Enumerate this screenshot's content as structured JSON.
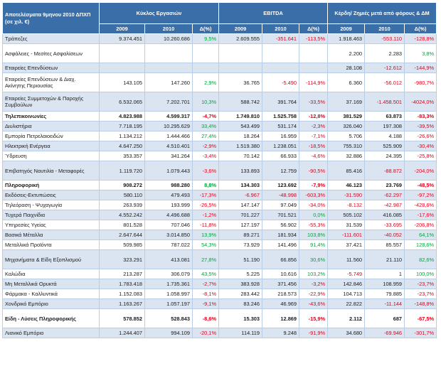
{
  "header": {
    "corner": "Αποτελέσματα 9μηνου 2010 ΔΠΧΠ (σε χιλ. €)",
    "groups": [
      "Κύκλος Εργασιών",
      "EBITDA",
      "Κέρδη/ Ζημιές μετά από φόρους & ΔΜ"
    ],
    "subheads": [
      "2009",
      "2010",
      "Δ(%)"
    ]
  },
  "rows": [
    {
      "name": "Τράπεζες",
      "h": 14,
      "band": true,
      "bold": false,
      "v": [
        "9.374.451",
        "10.260.686",
        "9,5%",
        "2.609.555",
        "-351.641",
        "-113,5%",
        "1.918.463",
        "-553.110",
        "-128,8%"
      ]
    },
    {
      "name": "Ασφάλειες - Μεσίτες Ασφαλίσεων",
      "h": 27,
      "band": false,
      "bold": false,
      "v": [
        "",
        "",
        "",
        "",
        "",
        "",
        "2.200",
        "2.283",
        "3,8%"
      ]
    },
    {
      "name": "Εταιρείες Επενδύσεων",
      "h": 14,
      "band": true,
      "bold": false,
      "v": [
        "",
        "",
        "",
        "",
        "",
        "",
        "28.108",
        "-12.612",
        "-144,9%"
      ]
    },
    {
      "name": "Εταιρείες Επενδύσεων & Διαχ. Ακίνητης Περιουσίας",
      "h": 27,
      "band": false,
      "bold": false,
      "v": [
        "143.105",
        "147.260",
        "2,9%",
        "36.765",
        "-5.490",
        "-114,9%",
        "6.360",
        "-56.012",
        "-980,7%"
      ]
    },
    {
      "name": "Εταιρείες Συμμετοχών & Παροχής Συμβούλων",
      "h": 27,
      "band": true,
      "bold": false,
      "v": [
        "6.532.065",
        "7.202.701",
        "10,3%",
        "588.742",
        "391.764",
        "-33,5%",
        "37.169",
        "-1.458.501",
        "-4024,0%"
      ]
    },
    {
      "name": "Τηλεπικοινωνίες",
      "h": 14,
      "band": false,
      "bold": true,
      "v": [
        "4.823.988",
        "4.599.317",
        "-4,7%",
        "1.749.810",
        "1.525.758",
        "-12,8%",
        "381.529",
        "63.873",
        "-83,3%"
      ]
    },
    {
      "name": "Διυλιστήρια",
      "h": 14,
      "band": true,
      "bold": false,
      "v": [
        "7.718.195",
        "10.295.629",
        "33,4%",
        "543.499",
        "531.174",
        "-2,3%",
        "326.040",
        "197.308",
        "-39,5%"
      ]
    },
    {
      "name": "Εμπορία Πετρελαιοειδών",
      "h": 14,
      "band": false,
      "bold": false,
      "v": [
        "1.134.212",
        "1.444.466",
        "27,4%",
        "18.264",
        "16.959",
        "-7,1%",
        "5.706",
        "4.188",
        "-26,6%"
      ]
    },
    {
      "name": "Ηλεκτρική Ενέργεια",
      "h": 14,
      "band": true,
      "bold": false,
      "v": [
        "4.647.250",
        "4.510.401",
        "-2,9%",
        "1.519.380",
        "1.238.051",
        "-18,5%",
        "755.310",
        "525.909",
        "-30,4%"
      ]
    },
    {
      "name": "Ύδρευση",
      "h": 14,
      "band": false,
      "bold": false,
      "v": [
        "353.357",
        "341.264",
        "-3,4%",
        "70.142",
        "66.933",
        "-4,6%",
        "32.886",
        "24.395",
        "-25,8%"
      ]
    },
    {
      "name": "Επιβατηγός Ναυτιλία - Μεταφορές",
      "h": 27,
      "band": true,
      "bold": false,
      "v": [
        "1.119.720",
        "1.079.443",
        "-3,6%",
        "133.893",
        "12.759",
        "-90,5%",
        "85.416",
        "-88.872",
        "-204,0%"
      ]
    },
    {
      "name": "Πληροφορική",
      "h": 14,
      "band": false,
      "bold": true,
      "v": [
        "908.272",
        "988.280",
        "8,8%",
        "134.303",
        "123.692",
        "-7,9%",
        "46.123",
        "23.769",
        "-48,5%"
      ]
    },
    {
      "name": "Εκδόσεις-Εκτυπώσεις",
      "h": 14,
      "band": true,
      "bold": false,
      "v": [
        "580.110",
        "479.493",
        "-17,3%",
        "-6.967",
        "-48.998",
        "-603,3%",
        "-31.590",
        "-62.297",
        "-97,2%"
      ]
    },
    {
      "name": "Τηλεόραση - Ψυχαγωγία",
      "h": 14,
      "band": false,
      "bold": false,
      "v": [
        "263.939",
        "193.999",
        "-26,5%",
        "147.147",
        "97.049",
        "-34,0%",
        "-8.132",
        "-42.987",
        "-428,6%"
      ]
    },
    {
      "name": "Τυχερά Παιχνίδια",
      "h": 14,
      "band": true,
      "bold": false,
      "v": [
        "4.552.242",
        "4.496.688",
        "-1,2%",
        "701.227",
        "701.521",
        "0,0%",
        "505.102",
        "416.085",
        "-17,6%"
      ]
    },
    {
      "name": "Υπηρεσίες Υγείας",
      "h": 14,
      "band": false,
      "bold": false,
      "v": [
        "801.528",
        "707.046",
        "-11,8%",
        "127.197",
        "56.902",
        "-55,3%",
        "31.539",
        "-33.695",
        "-206,8%"
      ]
    },
    {
      "name": "Βασικά Μέταλλα",
      "h": 14,
      "band": true,
      "bold": false,
      "v": [
        "2.647.644",
        "3.014.850",
        "13,9%",
        "89.271",
        "181.934",
        "103,8%",
        "-111.601",
        "-40.052",
        "64,1%"
      ]
    },
    {
      "name": "Μεταλλικά Προϊόντα",
      "h": 14,
      "band": false,
      "bold": false,
      "v": [
        "509.985",
        "787.022",
        "54,3%",
        "73.929",
        "141.496",
        "91,4%",
        "37.421",
        "85.557",
        "128,6%"
      ]
    },
    {
      "name": "Μηχανήματα & Είδη Εξοπλισμού",
      "h": 27,
      "band": true,
      "bold": false,
      "v": [
        "323.291",
        "413.081",
        "27,8%",
        "51.190",
        "66.856",
        "30,6%",
        "11.560",
        "21.110",
        "82,6%"
      ]
    },
    {
      "name": "Καλώδια",
      "h": 14,
      "band": false,
      "bold": false,
      "v": [
        "213.287",
        "306.079",
        "43,5%",
        "5.225",
        "10.616",
        "103,2%",
        "-5.749",
        "1",
        "100,0%"
      ]
    },
    {
      "name": "Μη Μεταλλικά Ορυκτά",
      "h": 14,
      "band": true,
      "bold": false,
      "v": [
        "1.783.418",
        "1.735.361",
        "-2,7%",
        "383.928",
        "371.456",
        "-3,2%",
        "142.846",
        "108.959",
        "-23,7%"
      ]
    },
    {
      "name": "Φάρμακα - Καλλυντικά",
      "h": 14,
      "band": false,
      "bold": false,
      "v": [
        "1.152.083",
        "1.058.997",
        "-8,1%",
        "283.442",
        "218.573",
        "-22,9%",
        "104.713",
        "79.885",
        "-23,7%"
      ]
    },
    {
      "name": "Χονδρικό Εμπόριο",
      "h": 14,
      "band": true,
      "bold": false,
      "v": [
        "1.163.267",
        "1.057.197",
        "-9,1%",
        "83.246",
        "46.969",
        "-43,6%",
        "22.822",
        "-11.144",
        "-148,8%"
      ]
    },
    {
      "name": "Είδη - Λύσεις Πληροφορικής",
      "h": 27,
      "band": false,
      "bold": true,
      "v": [
        "578.852",
        "528.843",
        "-8,6%",
        "15.303",
        "12.869",
        "-15,9%",
        "2.112",
        "687",
        "-67,5%"
      ]
    },
    {
      "name": "Λιανικό Εμπόριο",
      "h": 14,
      "band": true,
      "bold": false,
      "v": [
        "1.244.407",
        "994.109",
        "-20,1%",
        "114.119",
        "9.248",
        "-91,9%",
        "34.680",
        "-69.946",
        "-301,7%"
      ]
    }
  ],
  "colors": {
    "header": "#3a6ea8",
    "band": "#dbe5f1",
    "negative": "#e0001b",
    "positive": "#00a33a"
  }
}
